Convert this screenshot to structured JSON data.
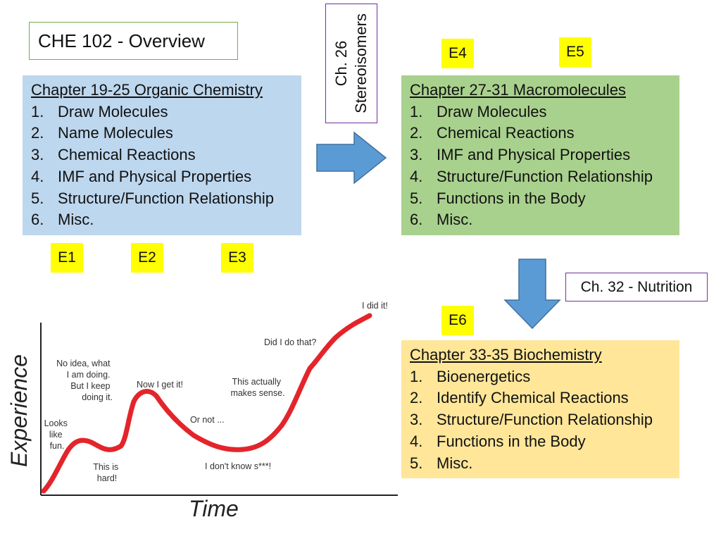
{
  "title": "CHE 102 - Overview",
  "stereo_box": {
    "line1": "Ch. 26",
    "line2": "Stereoisomers"
  },
  "exam_tags": {
    "e1": "E1",
    "e2": "E2",
    "e3": "E3",
    "e4": "E4",
    "e5": "E5",
    "e6": "E6"
  },
  "panels": {
    "organic": {
      "heading": "Chapter 19-25 Organic Chemistry",
      "items": [
        "Draw Molecules",
        "Name Molecules",
        "Chemical Reactions",
        "IMF and Physical Properties",
        "Structure/Function Relationship",
        "Misc."
      ]
    },
    "macro": {
      "heading": "Chapter 27-31 Macromolecules",
      "items": [
        "Draw Molecules",
        "Chemical Reactions",
        "IMF and Physical Properties",
        "Structure/Function Relationship",
        "Functions in the Body",
        "Misc."
      ]
    },
    "biochem": {
      "heading": "Chapter 33-35 Biochemistry",
      "items": [
        "Bioenergetics",
        "Identify Chemical Reactions",
        "Structure/Function Relationship",
        "Functions in the Body",
        "Misc."
      ]
    }
  },
  "numbers": [
    "1.",
    "2.",
    "3.",
    "4.",
    "5.",
    "6."
  ],
  "nutrition_box": "Ch. 32 - Nutrition",
  "colors": {
    "blue_panel": "#bdd7ee",
    "green_panel": "#a9d18e",
    "yellow_panel": "#ffe699",
    "tag_yellow": "#ffff00",
    "arrow_blue": "#5b9bd5",
    "curve_red": "#e3252b",
    "title_border": "#70ad47",
    "purple_border": "#7030a0"
  },
  "learning_curve": {
    "axis_y": "Experience",
    "axis_x": "Time",
    "annotations": {
      "looks_like_fun": [
        "Looks",
        "like",
        "fun."
      ],
      "no_idea": [
        "No idea, what",
        "I am doing.",
        "But I keep",
        "doing it."
      ],
      "this_is_hard": [
        "This is",
        "hard!"
      ],
      "now_i_get_it": "Now I get it!",
      "or_not": "Or not ...",
      "dont_know": "I don't know s***!",
      "makes_sense": [
        "This actually",
        "makes sense."
      ],
      "did_i_do_that": "Did I do that?",
      "i_did_it": "I did it!"
    }
  }
}
